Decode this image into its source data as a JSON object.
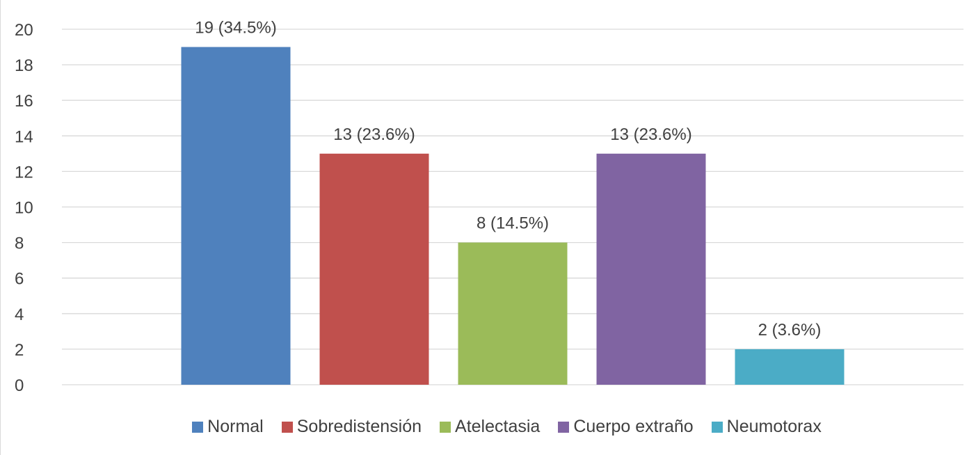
{
  "chart_data": {
    "type": "bar",
    "title": "",
    "xlabel": "",
    "ylabel": "",
    "ylim": [
      0,
      20
    ],
    "yticks": [
      0,
      2,
      4,
      6,
      8,
      10,
      12,
      14,
      16,
      18,
      20
    ],
    "grid": true,
    "legend_position": "bottom",
    "categories": [
      "Normal",
      "Sobredistensión",
      "Atelectasia",
      "Cuerpo extraño",
      "Neumotorax"
    ],
    "values": [
      19,
      13,
      8,
      13,
      2
    ],
    "data_labels": [
      "19 (34.5%)",
      "13 (23.6%)",
      "8 (14.5%)",
      "13 (23.6%)",
      "2 (3.6%)"
    ],
    "colors": [
      "#4f81bd",
      "#c0504d",
      "#9bbb59",
      "#8064a2",
      "#4bacc6"
    ]
  }
}
